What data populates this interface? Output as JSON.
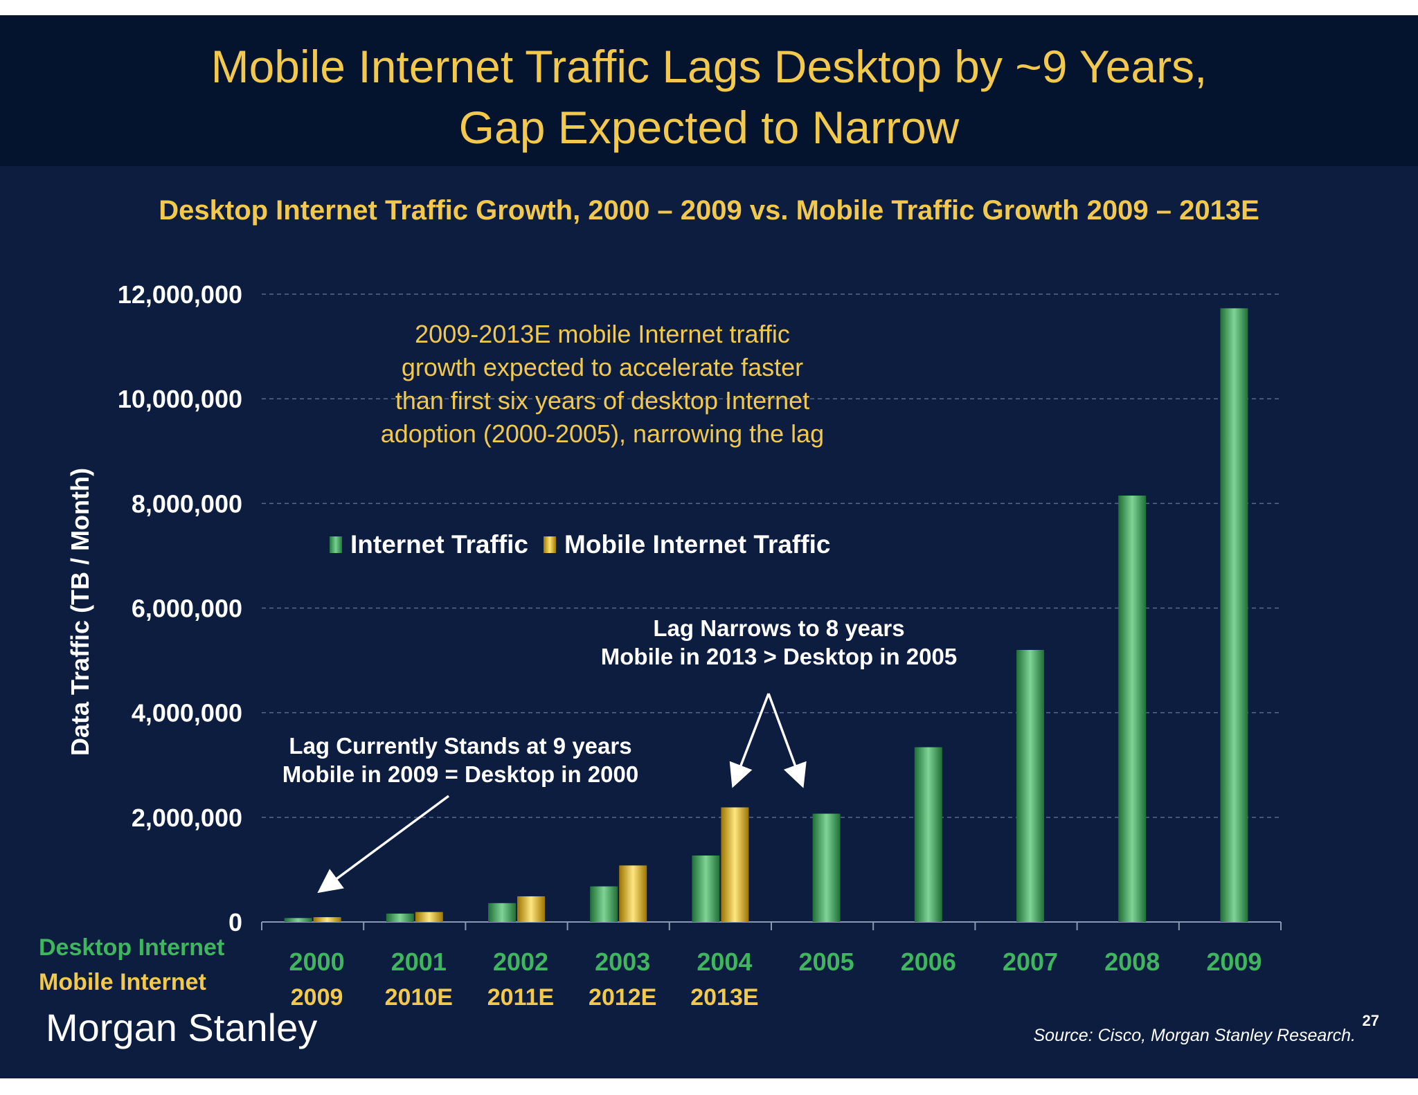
{
  "slide": {
    "title_line1": "Mobile Internet Traffic Lags Desktop by ~9 Years,",
    "title_line2": "Gap Expected to Narrow",
    "logo": "Morgan Stanley",
    "source": "Source: Cisco, Morgan Stanley Research.",
    "page_number": "27"
  },
  "annotations": {
    "growth_note": [
      "2009-2013E mobile Internet traffic",
      "growth expected to accelerate faster",
      "than first six years of desktop Internet",
      "adoption (2000-2005), narrowing the lag"
    ],
    "lag_current": [
      "Lag Currently Stands at 9 years",
      "Mobile in 2009 = Desktop in 2000"
    ],
    "lag_narrows": [
      "Lag Narrows to 8 years",
      "Mobile in 2013 > Desktop in 2005"
    ]
  },
  "row_labels": {
    "desktop": "Desktop Internet",
    "mobile": "Mobile Internet"
  },
  "colors": {
    "desktop": "#3fb55e",
    "mobile": "#f2c94c",
    "background": "#0c1d40",
    "header": "#05142e"
  },
  "chart_data": {
    "type": "bar",
    "title": "Desktop Internet Traffic Growth, 2000 – 2009 vs. Mobile Traffic Growth 2009 – 2013E",
    "ylabel": "Data Traffic (TB / Month)",
    "ylim": [
      0,
      12000000
    ],
    "yticks": [
      0,
      2000000,
      4000000,
      6000000,
      8000000,
      10000000,
      12000000
    ],
    "ytick_labels": [
      "0",
      "2,000,000",
      "4,000,000",
      "6,000,000",
      "8,000,000",
      "10,000,000",
      "12,000,000"
    ],
    "grid": true,
    "legend_position": "center",
    "categories": [
      "2000",
      "2001",
      "2002",
      "2003",
      "2004",
      "2005",
      "2006",
      "2007",
      "2008",
      "2009"
    ],
    "mobile_categories": [
      "2009",
      "2010E",
      "2011E",
      "2012E",
      "2013E"
    ],
    "series": [
      {
        "name": "Internet Traffic",
        "values": [
          75000,
          160000,
          360000,
          680000,
          1270000,
          2070000,
          3340000,
          5200000,
          8150000,
          11730000
        ]
      },
      {
        "name": "Mobile Internet Traffic",
        "values": [
          91000,
          190000,
          490000,
          1080000,
          2190000,
          null,
          null,
          null,
          null,
          null
        ]
      }
    ]
  }
}
